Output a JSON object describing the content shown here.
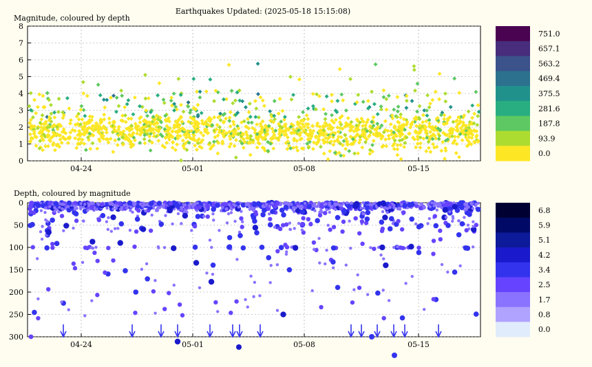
{
  "title": "Earthquakes Updated: (2025-05-18 15:15:08)",
  "chart_data": [
    {
      "id": "magnitude",
      "type": "scatter",
      "panel_label": "Magnitude, coloured by depth",
      "xtick_labels": [
        "04-24",
        "05-01",
        "05-08",
        "05-15"
      ],
      "yticks": [
        0,
        1,
        2,
        3,
        4,
        5,
        6,
        7,
        8
      ],
      "ylim": [
        0,
        8
      ],
      "colorbar": {
        "labels": [
          "751.0",
          "657.1",
          "563.2",
          "469.4",
          "375.5",
          "281.6",
          "187.8",
          "93.9",
          "0.0"
        ],
        "colors": [
          "#4a0350",
          "#472d7b",
          "#3b528b",
          "#2c728e",
          "#21918c",
          "#28ae80",
          "#5ec962",
          "#addc30",
          "#fde725"
        ]
      },
      "points": []
    },
    {
      "id": "depth",
      "type": "scatter",
      "panel_label": "Depth, coloured by magnitude",
      "xtick_labels": [
        "04-24",
        "05-01",
        "05-08",
        "05-15"
      ],
      "yticks": [
        0,
        50,
        100,
        150,
        200,
        250,
        300
      ],
      "ylim": [
        300,
        0
      ],
      "colorbar": {
        "labels": [
          "6.8",
          "5.9",
          "5.1",
          "4.2",
          "3.4",
          "2.5",
          "1.7",
          "0.8",
          "0.0"
        ],
        "colors": [
          "#000033",
          "#000a66",
          "#0d1a99",
          "#1a1acc",
          "#3333ee",
          "#6644ff",
          "#8a73ff",
          "#b0a3ff",
          "#e0ecfc"
        ]
      },
      "points": []
    }
  ]
}
